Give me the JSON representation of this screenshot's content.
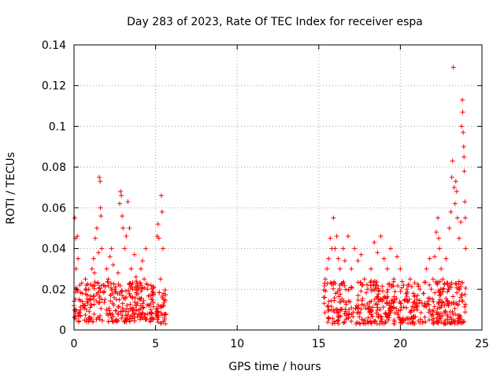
{
  "chart_data": {
    "type": "scatter",
    "title": "Day 283 of 2023, Rate Of TEC Index for receiver espa",
    "xlabel": "GPS time / hours",
    "ylabel": "ROTI / TECUs",
    "xlim": [
      0,
      25
    ],
    "ylim": [
      0,
      0.14
    ],
    "xticks": [
      0,
      5,
      10,
      15,
      20,
      25
    ],
    "xtick_labels": [
      "0",
      "5",
      "10",
      "15",
      "20",
      "25"
    ],
    "yticks": [
      0,
      0.02,
      0.04,
      0.06,
      0.08,
      0.1,
      0.12,
      0.14
    ],
    "ytick_labels": [
      "0",
      "0.02",
      "0.04",
      "0.06",
      "0.08",
      "0.1",
      "0.12",
      "0.14"
    ],
    "grid": true,
    "marker": "+",
    "color": "#ff0000",
    "series": [
      {
        "points": [
          [
            0.0,
            0.012
          ],
          [
            0.05,
            0.055
          ],
          [
            0.1,
            0.045
          ],
          [
            0.12,
            0.03
          ],
          [
            0.15,
            0.02
          ],
          [
            0.2,
            0.046
          ],
          [
            0.25,
            0.035
          ],
          [
            0.3,
            0.015
          ],
          [
            0.35,
            0.022
          ],
          [
            0.4,
            0.01
          ],
          [
            0.5,
            0.018
          ],
          [
            0.6,
            0.012
          ],
          [
            0.7,
            0.025
          ],
          [
            0.8,
            0.014
          ],
          [
            0.9,
            0.02
          ],
          [
            1.0,
            0.011
          ],
          [
            1.1,
            0.03
          ],
          [
            1.2,
            0.035
          ],
          [
            1.25,
            0.028
          ],
          [
            1.3,
            0.045
          ],
          [
            1.4,
            0.05
          ],
          [
            1.5,
            0.038
          ],
          [
            1.55,
            0.075
          ],
          [
            1.6,
            0.073
          ],
          [
            1.62,
            0.06
          ],
          [
            1.65,
            0.056
          ],
          [
            1.7,
            0.04
          ],
          [
            1.8,
            0.022
          ],
          [
            1.9,
            0.015
          ],
          [
            2.0,
            0.03
          ],
          [
            2.1,
            0.025
          ],
          [
            2.2,
            0.036
          ],
          [
            2.3,
            0.04
          ],
          [
            2.4,
            0.032
          ],
          [
            2.5,
            0.02
          ],
          [
            2.6,
            0.015
          ],
          [
            2.7,
            0.028
          ],
          [
            2.8,
            0.062
          ],
          [
            2.85,
            0.068
          ],
          [
            2.9,
            0.066
          ],
          [
            2.95,
            0.056
          ],
          [
            3.0,
            0.05
          ],
          [
            3.1,
            0.04
          ],
          [
            3.2,
            0.046
          ],
          [
            3.3,
            0.063
          ],
          [
            3.4,
            0.05
          ],
          [
            3.5,
            0.03
          ],
          [
            3.6,
            0.02
          ],
          [
            3.7,
            0.037
          ],
          [
            3.8,
            0.026
          ],
          [
            3.9,
            0.02
          ],
          [
            4.0,
            0.015
          ],
          [
            4.1,
            0.03
          ],
          [
            4.2,
            0.034
          ],
          [
            4.3,
            0.025
          ],
          [
            4.4,
            0.04
          ],
          [
            4.5,
            0.02
          ],
          [
            4.6,
            0.012
          ],
          [
            4.7,
            0.01
          ],
          [
            4.8,
            0.015
          ],
          [
            5.1,
            0.046
          ],
          [
            5.15,
            0.052
          ],
          [
            5.2,
            0.045
          ],
          [
            5.3,
            0.025
          ],
          [
            5.35,
            0.066
          ],
          [
            5.4,
            0.058
          ],
          [
            5.45,
            0.04
          ],
          [
            5.5,
            0.015
          ],
          [
            5.55,
            0.005
          ],
          [
            5.6,
            0.003
          ],
          [
            15.3,
            0.016
          ],
          [
            15.4,
            0.025
          ],
          [
            15.5,
            0.03
          ],
          [
            15.6,
            0.035
          ],
          [
            15.7,
            0.045
          ],
          [
            15.8,
            0.04
          ],
          [
            15.9,
            0.055
          ],
          [
            16.0,
            0.04
          ],
          [
            16.1,
            0.046
          ],
          [
            16.2,
            0.035
          ],
          [
            16.3,
            0.03
          ],
          [
            16.5,
            0.04
          ],
          [
            16.6,
            0.034
          ],
          [
            16.8,
            0.046
          ],
          [
            17.0,
            0.03
          ],
          [
            17.2,
            0.04
          ],
          [
            17.4,
            0.034
          ],
          [
            17.6,
            0.037
          ],
          [
            17.8,
            0.025
          ],
          [
            18.0,
            0.02
          ],
          [
            18.2,
            0.03
          ],
          [
            18.4,
            0.043
          ],
          [
            18.6,
            0.038
          ],
          [
            18.8,
            0.046
          ],
          [
            19.0,
            0.035
          ],
          [
            19.2,
            0.03
          ],
          [
            19.4,
            0.04
          ],
          [
            19.6,
            0.025
          ],
          [
            19.8,
            0.036
          ],
          [
            20.0,
            0.03
          ],
          [
            20.2,
            0.022
          ],
          [
            20.4,
            0.02
          ],
          [
            20.6,
            0.025
          ],
          [
            20.8,
            0.018
          ],
          [
            21.0,
            0.015
          ],
          [
            21.2,
            0.02
          ],
          [
            21.4,
            0.018
          ],
          [
            21.6,
            0.03
          ],
          [
            21.8,
            0.035
          ],
          [
            22.0,
            0.025
          ],
          [
            22.1,
            0.036
          ],
          [
            22.2,
            0.048
          ],
          [
            22.3,
            0.055
          ],
          [
            22.35,
            0.045
          ],
          [
            22.4,
            0.04
          ],
          [
            22.5,
            0.03
          ],
          [
            22.6,
            0.025
          ],
          [
            22.8,
            0.035
          ],
          [
            23.0,
            0.05
          ],
          [
            23.1,
            0.058
          ],
          [
            23.15,
            0.075
          ],
          [
            23.2,
            0.083
          ],
          [
            23.25,
            0.129
          ],
          [
            23.3,
            0.07
          ],
          [
            23.35,
            0.062
          ],
          [
            23.4,
            0.073
          ],
          [
            23.45,
            0.068
          ],
          [
            23.5,
            0.055
          ],
          [
            23.6,
            0.045
          ],
          [
            23.7,
            0.053
          ],
          [
            23.75,
            0.1
          ],
          [
            23.8,
            0.113
          ],
          [
            23.82,
            0.107
          ],
          [
            23.85,
            0.097
          ],
          [
            23.88,
            0.09
          ],
          [
            23.9,
            0.085
          ],
          [
            23.92,
            0.078
          ],
          [
            23.95,
            0.063
          ],
          [
            23.98,
            0.055
          ],
          [
            24.0,
            0.04
          ]
        ]
      }
    ],
    "dense_bands": [
      {
        "x": [
          0.0,
          4.9
        ],
        "y": [
          0.004,
          0.024
        ]
      },
      {
        "x": [
          5.0,
          5.65
        ],
        "y": [
          0.003,
          0.02
        ]
      },
      {
        "x": [
          15.3,
          24.0
        ],
        "y": [
          0.003,
          0.024
        ]
      }
    ]
  }
}
